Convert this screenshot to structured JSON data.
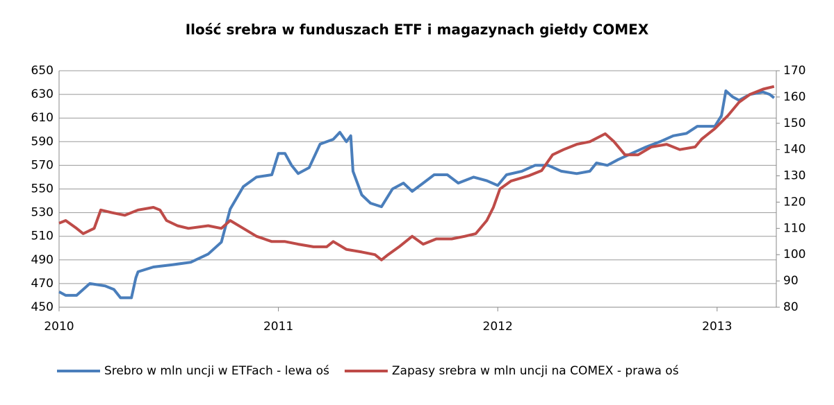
{
  "chart_data": {
    "type": "line",
    "title": "Ilość srebra w funduszach ETF i magazynach giełdy COMEX",
    "xlim": [
      2010,
      2013.27
    ],
    "xticks": [
      2010,
      2011,
      2012,
      2013
    ],
    "ylim": [
      450,
      650
    ],
    "yticks": [
      450,
      470,
      490,
      510,
      530,
      550,
      570,
      590,
      610,
      630,
      650
    ],
    "y2lim": [
      80,
      170
    ],
    "y2ticks": [
      80,
      90,
      100,
      110,
      120,
      130,
      140,
      150,
      160,
      170
    ],
    "grid": true,
    "legend": "bottom",
    "series": [
      {
        "name": "Srebro w mln uncji w ETFach - lewa oś",
        "color": "#4a7ebb",
        "x": [
          2010.0,
          2010.03,
          2010.08,
          2010.14,
          2010.21,
          2010.25,
          2010.28,
          2010.33,
          2010.35,
          2010.36,
          2010.43,
          2010.52,
          2010.6,
          2010.68,
          2010.74,
          2010.78,
          2010.84,
          2010.9,
          2010.97,
          2011.0,
          2011.03,
          2011.06,
          2011.09,
          2011.14,
          2011.19,
          2011.25,
          2011.28,
          2011.31,
          2011.33,
          2011.34,
          2011.38,
          2011.42,
          2011.47,
          2011.52,
          2011.57,
          2011.61,
          2011.66,
          2011.71,
          2011.77,
          2011.82,
          2011.89,
          2011.95,
          2012.0,
          2012.04,
          2012.11,
          2012.17,
          2012.23,
          2012.29,
          2012.36,
          2012.42,
          2012.45,
          2012.5,
          2012.55,
          2012.61,
          2012.67,
          2012.74,
          2012.8,
          2012.86,
          2012.91,
          2012.99,
          2013.02,
          2013.04,
          2013.07,
          2013.1,
          2013.15,
          2013.21,
          2013.24,
          2013.26
        ],
        "values": [
          463,
          460,
          460,
          470,
          468,
          465,
          458,
          458,
          475,
          480,
          484,
          486,
          488,
          495,
          505,
          533,
          552,
          560,
          562,
          580,
          580,
          570,
          563,
          568,
          588,
          592,
          598,
          590,
          595,
          565,
          545,
          538,
          535,
          550,
          555,
          548,
          555,
          562,
          562,
          555,
          560,
          557,
          553,
          562,
          565,
          570,
          570,
          565,
          563,
          565,
          572,
          570,
          575,
          580,
          585,
          590,
          595,
          597,
          603,
          603,
          612,
          633,
          628,
          625,
          630,
          632,
          630,
          627
        ]
      },
      {
        "name": "Zapasy srebra w mln uncji na COMEX - prawa oś",
        "color": "#be4b48",
        "axis": "y2",
        "x": [
          2010.0,
          2010.03,
          2010.08,
          2010.11,
          2010.16,
          2010.19,
          2010.24,
          2010.3,
          2010.36,
          2010.43,
          2010.46,
          2010.49,
          2010.54,
          2010.59,
          2010.68,
          2010.74,
          2010.78,
          2010.84,
          2010.9,
          2010.97,
          2011.03,
          2011.09,
          2011.16,
          2011.22,
          2011.25,
          2011.31,
          2011.38,
          2011.44,
          2011.47,
          2011.5,
          2011.55,
          2011.61,
          2011.66,
          2011.72,
          2011.79,
          2011.85,
          2011.9,
          2011.95,
          2011.98,
          2012.01,
          2012.06,
          2012.14,
          2012.2,
          2012.25,
          2012.3,
          2012.36,
          2012.42,
          2012.49,
          2012.53,
          2012.58,
          2012.64,
          2012.7,
          2012.77,
          2012.83,
          2012.9,
          2012.93,
          2012.99,
          2013.05,
          2013.1,
          2013.15,
          2013.21,
          2013.26
        ],
        "values": [
          112,
          113,
          110,
          108,
          110,
          117,
          116,
          115,
          117,
          118,
          117,
          113,
          111,
          110,
          111,
          110,
          113,
          110,
          107,
          105,
          105,
          104,
          103,
          103,
          105,
          102,
          101,
          100,
          98,
          100,
          103,
          107,
          104,
          106,
          106,
          107,
          108,
          113,
          118,
          125,
          128,
          130,
          132,
          138,
          140,
          142,
          143,
          146,
          143,
          138,
          138,
          141,
          142,
          140,
          141,
          144,
          148,
          153,
          158,
          161,
          163,
          164
        ]
      }
    ]
  }
}
